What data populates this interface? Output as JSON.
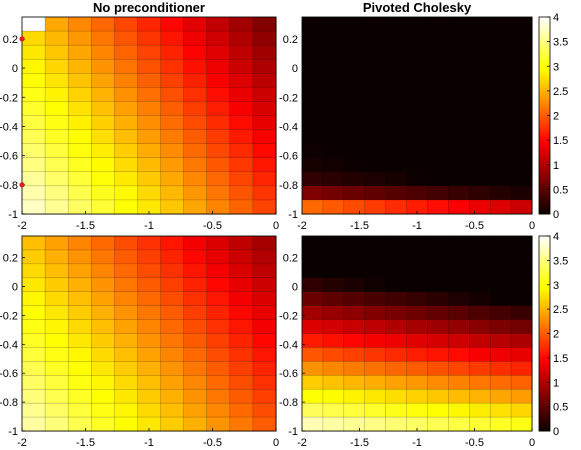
{
  "chart_data": [
    {
      "type": "heatmap",
      "title": "No preconditioner",
      "xlim": [
        -2,
        0
      ],
      "ylim": [
        -1,
        0.35
      ],
      "xticks": [
        "-2",
        "-1.5",
        "-1",
        "-0.5",
        "0"
      ],
      "yticks": [
        "0.2",
        "0",
        "-0.2",
        "-0.4",
        "-0.6",
        "-0.8",
        "-1"
      ],
      "grid": "11 columns x 14 rows",
      "clim": [
        0,
        4
      ],
      "colormap": "hot",
      "markers": [
        {
          "x": -2,
          "y": 0.2,
          "color": "#e41a1c"
        },
        {
          "x": -2,
          "y": -0.8,
          "color": "#e41a1c"
        }
      ],
      "field": {
        "model": "linear",
        "base": 3.9,
        "coef_x": 1.05,
        "coef_y": 0.9,
        "anchor_x": -2,
        "anchor_y": -1
      },
      "note": "top-left cell rendered white (exceeds color range)"
    },
    {
      "type": "heatmap",
      "title": "Pivoted Cholesky",
      "xlim": [
        -2,
        0
      ],
      "ylim": [
        -1,
        0.35
      ],
      "xticks": [
        "-2",
        "-1.5",
        "-1",
        "-0.5",
        "0"
      ],
      "yticks": [
        "0.2",
        "0",
        "-0.2",
        "-0.4",
        "-0.6",
        "-0.8",
        "-1"
      ],
      "grid": "11 columns x 14 rows",
      "clim": [
        0,
        4
      ],
      "colormap": "hot",
      "colorbar": {
        "ticks": [
          "0",
          "0.5",
          "1",
          "1.5",
          "2",
          "2.5",
          "3",
          "3.5",
          "4"
        ],
        "location": "right"
      },
      "field": {
        "model": "exponential-decay",
        "base": 3.6,
        "decay_y": 11,
        "coef_x": 0.6,
        "anchor_x": -2,
        "anchor_y": -1
      }
    },
    {
      "type": "heatmap",
      "title": "",
      "xlim": [
        -2,
        0
      ],
      "ylim": [
        -1,
        0.35
      ],
      "xticks": [
        "-2",
        "-1.5",
        "-1",
        "-0.5",
        "0"
      ],
      "yticks": [
        "0.2",
        "0",
        "-0.2",
        "-0.4",
        "-0.6",
        "-0.8",
        "-1"
      ],
      "grid": "11 columns x 14 rows",
      "clim": [
        0,
        4
      ],
      "colormap": "hot",
      "field": {
        "model": "linear",
        "base": 3.75,
        "coef_x": 0.9,
        "coef_y": 0.85,
        "anchor_x": -2,
        "anchor_y": -1
      }
    },
    {
      "type": "heatmap",
      "title": "",
      "xlim": [
        -2,
        0
      ],
      "ylim": [
        -1,
        0.35
      ],
      "xticks": [
        "-2",
        "-1.5",
        "-1",
        "-0.5",
        "0"
      ],
      "yticks": [
        "0.2",
        "0",
        "-0.2",
        "-0.4",
        "-0.6",
        "-0.8",
        "-1"
      ],
      "grid": "11 columns x 14 rows",
      "clim": [
        0,
        4
      ],
      "colormap": "hot",
      "colorbar": {
        "ticks": [
          "0",
          "0.5",
          "1",
          "1.5",
          "2",
          "2.5",
          "3",
          "3.5",
          "4"
        ],
        "location": "right"
      },
      "field": {
        "model": "linear-clipped",
        "base": 3.9,
        "coef_y": 3.6,
        "coef_x": 0.35,
        "anchor_x": -2,
        "anchor_y": -1
      }
    }
  ]
}
